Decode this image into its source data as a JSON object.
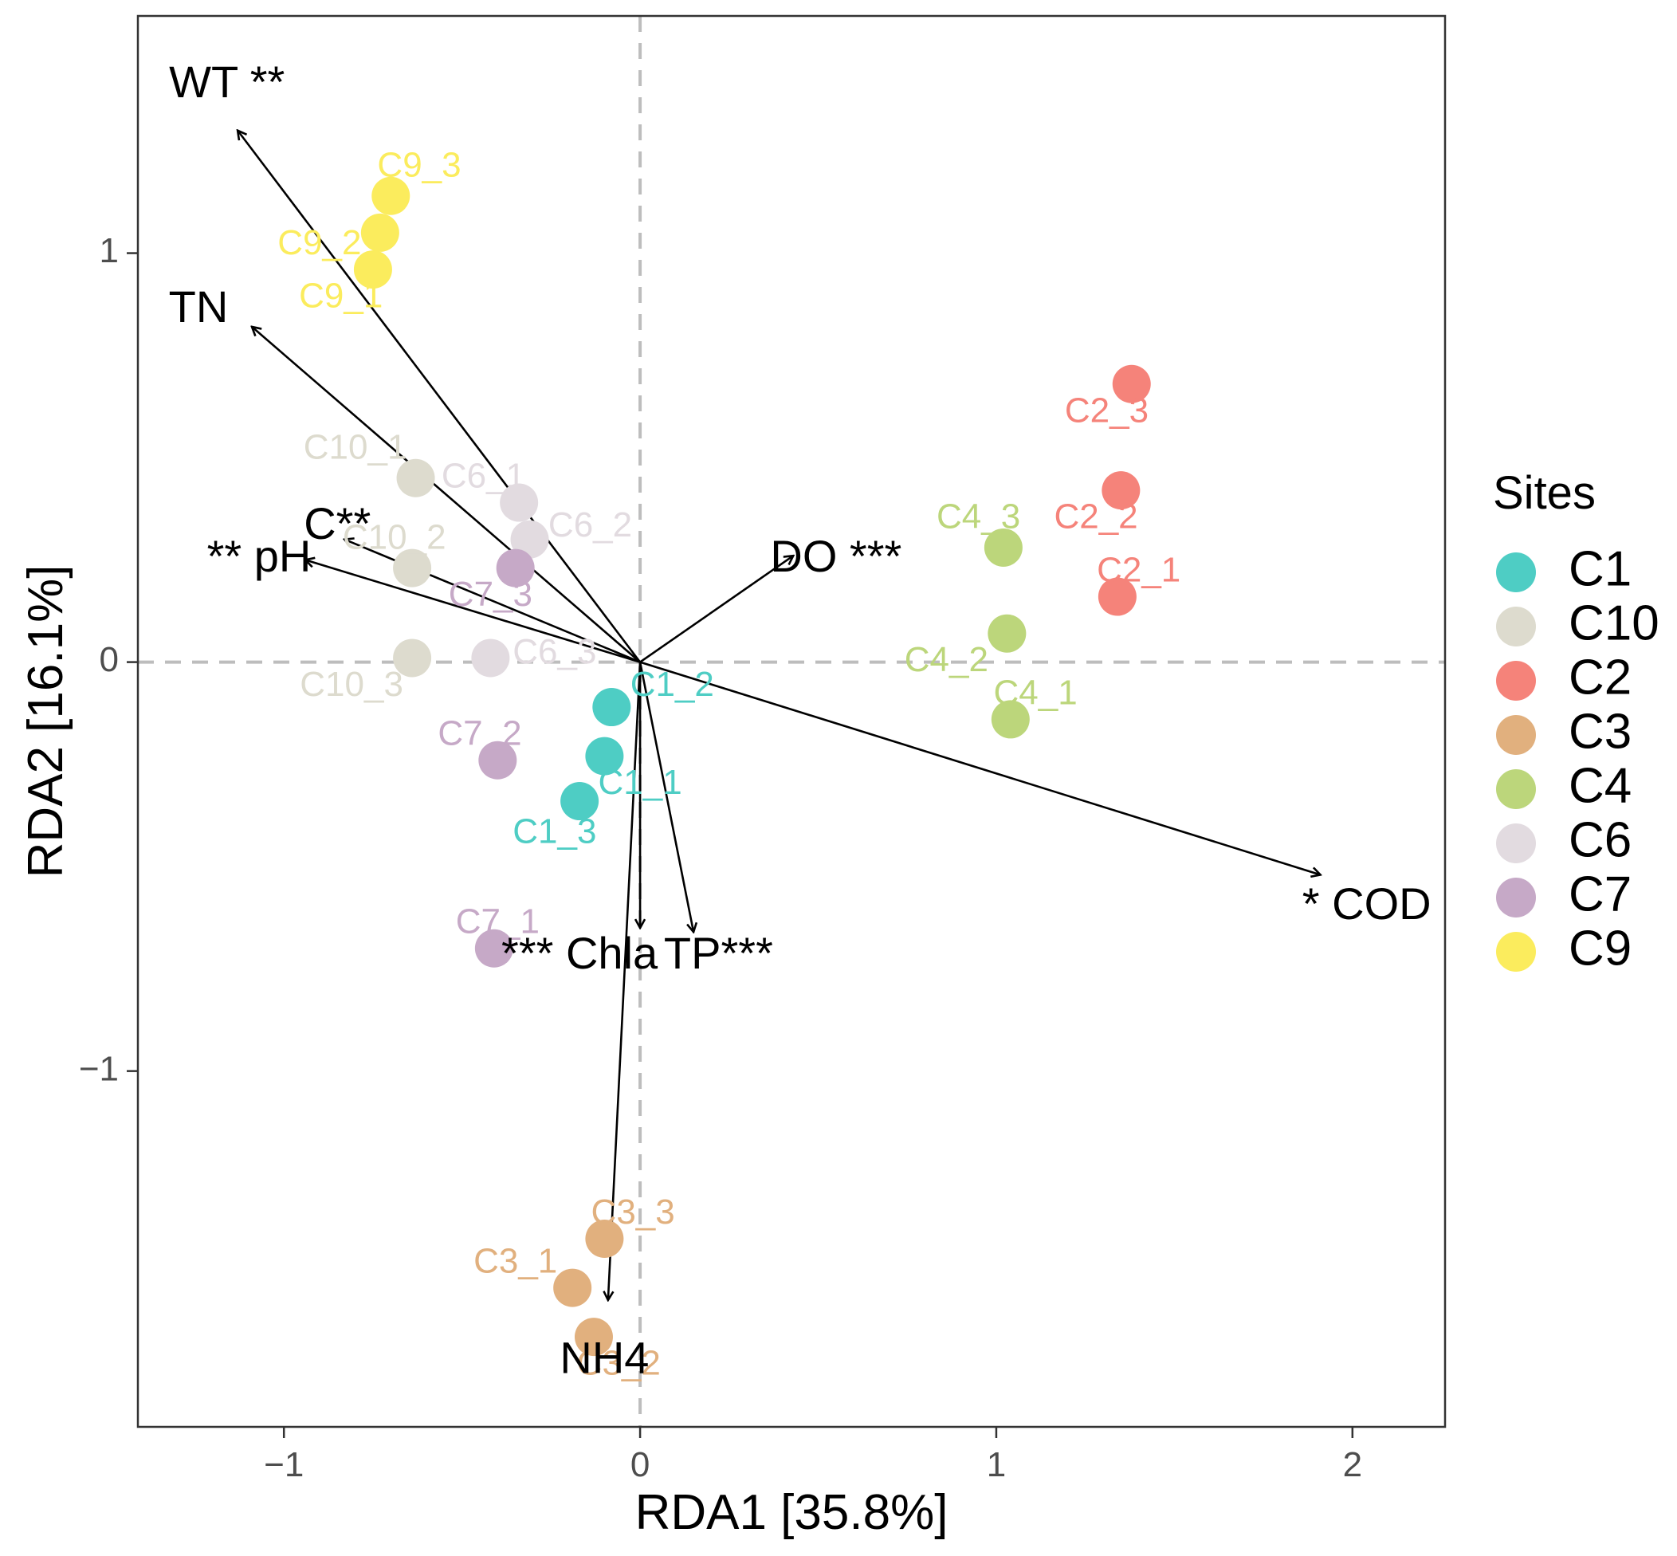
{
  "chart_data": {
    "type": "scatter",
    "subtype": "RDA biplot",
    "xlabel": "RDA1 [35.8%]",
    "ylabel": "RDA2 [16.1%]",
    "xlim": [
      -1.41,
      2.26
    ],
    "ylim": [
      -1.87,
      1.58
    ],
    "xticks": [
      -1,
      0,
      1,
      2
    ],
    "yticks": [
      -1,
      0,
      1
    ],
    "x_tick_labels": [
      "−1",
      "0",
      "1",
      "2"
    ],
    "y_tick_labels": [
      "−1",
      "0",
      "1"
    ],
    "reference_lines": [
      {
        "axis": "x",
        "value": 0,
        "style": "dashed"
      },
      {
        "axis": "y",
        "value": 0,
        "style": "dashed"
      }
    ],
    "grid": false,
    "legend": {
      "title": "Sites",
      "placement": "right",
      "entries": [
        {
          "label": "C1",
          "color": "#4ECDC4"
        },
        {
          "label": "C10",
          "color": "#DDDBCE"
        },
        {
          "label": "C2",
          "color": "#F5837A"
        },
        {
          "label": "C3",
          "color": "#E1B07E"
        },
        {
          "label": "C4",
          "color": "#BCD67B"
        },
        {
          "label": "C6",
          "color": "#E2DBE0"
        },
        {
          "label": "C7",
          "color": "#C6A9C7"
        },
        {
          "label": "C9",
          "color": "#FBEC5D"
        }
      ]
    },
    "points": [
      {
        "label": "C1_1",
        "group": "C1",
        "x": -0.1,
        "y": -0.23,
        "lx": 0.0,
        "ly": -0.3
      },
      {
        "label": "C1_2",
        "group": "C1",
        "x": -0.08,
        "y": -0.11,
        "lx": 0.09,
        "ly": -0.06
      },
      {
        "label": "C1_3",
        "group": "C1",
        "x": -0.17,
        "y": -0.34,
        "lx": -0.24,
        "ly": -0.42
      },
      {
        "label": "C10_1",
        "group": "C10",
        "x": -0.63,
        "y": 0.45,
        "lx": -0.8,
        "ly": 0.52
      },
      {
        "label": "C10_2",
        "group": "C10",
        "x": -0.64,
        "y": 0.23,
        "lx": -0.69,
        "ly": 0.3
      },
      {
        "label": "C10_3",
        "group": "C10",
        "x": -0.64,
        "y": 0.01,
        "lx": -0.81,
        "ly": -0.06
      },
      {
        "label": "C2_1",
        "group": "C2",
        "x": 1.34,
        "y": 0.16,
        "lx": 1.4,
        "ly": 0.22
      },
      {
        "label": "C2_2",
        "group": "C2",
        "x": 1.35,
        "y": 0.42,
        "lx": 1.28,
        "ly": 0.35
      },
      {
        "label": "C2_3",
        "group": "C2",
        "x": 1.38,
        "y": 0.68,
        "lx": 1.31,
        "ly": 0.61
      },
      {
        "label": "C3_1",
        "group": "C3",
        "x": -0.19,
        "y": -1.53,
        "lx": -0.35,
        "ly": -1.47
      },
      {
        "label": "C3_2",
        "group": "C3",
        "x": -0.13,
        "y": -1.65,
        "lx": -0.06,
        "ly": -1.72
      },
      {
        "label": "C3_3",
        "group": "C3",
        "x": -0.1,
        "y": -1.41,
        "lx": -0.02,
        "ly": -1.35
      },
      {
        "label": "C4_1",
        "group": "C4",
        "x": 1.04,
        "y": -0.14,
        "lx": 1.11,
        "ly": -0.08
      },
      {
        "label": "C4_2",
        "group": "C4",
        "x": 1.03,
        "y": 0.07,
        "lx": 0.86,
        "ly": 0.0
      },
      {
        "label": "C4_3",
        "group": "C4",
        "x": 1.02,
        "y": 0.28,
        "lx": 0.95,
        "ly": 0.35
      },
      {
        "label": "C6_1",
        "group": "C6",
        "x": -0.34,
        "y": 0.39,
        "lx": -0.44,
        "ly": 0.45
      },
      {
        "label": "C6_2",
        "group": "C6",
        "x": -0.31,
        "y": 0.3,
        "lx": -0.14,
        "ly": 0.33
      },
      {
        "label": "C6_3",
        "group": "C6",
        "x": -0.42,
        "y": 0.01,
        "lx": -0.24,
        "ly": 0.02
      },
      {
        "label": "C7_1",
        "group": "C7",
        "x": -0.41,
        "y": -0.7,
        "lx": -0.4,
        "ly": -0.64
      },
      {
        "label": "C7_2",
        "group": "C7",
        "x": -0.4,
        "y": -0.24,
        "lx": -0.45,
        "ly": -0.18
      },
      {
        "label": "C7_3",
        "group": "C7",
        "x": -0.35,
        "y": 0.23,
        "lx": -0.42,
        "ly": 0.16
      },
      {
        "label": "C9_1",
        "group": "C9",
        "x": -0.75,
        "y": 0.96,
        "lx": -0.84,
        "ly": 0.89
      },
      {
        "label": "C9_2",
        "group": "C9",
        "x": -0.73,
        "y": 1.05,
        "lx": -0.9,
        "ly": 1.02
      },
      {
        "label": "C9_3",
        "group": "C9",
        "x": -0.7,
        "y": 1.14,
        "lx": -0.62,
        "ly": 1.21
      }
    ],
    "vectors": [
      {
        "name": "WT",
        "signif": "**",
        "label": "WT **",
        "x": -1.13,
        "y": 1.3,
        "lx": -1.16,
        "ly": 1.41,
        "anchor": "middle"
      },
      {
        "name": "TN",
        "signif": "",
        "label": "TN",
        "x": -1.09,
        "y": 0.82,
        "lx": -1.24,
        "ly": 0.86,
        "anchor": "middle"
      },
      {
        "name": "C",
        "signif": "**",
        "label": "C**",
        "x": -0.83,
        "y": 0.3,
        "lx": -0.85,
        "ly": 0.33,
        "anchor": "middle"
      },
      {
        "name": "pH",
        "signif": "**",
        "label": "** pH",
        "x": -0.94,
        "y": 0.25,
        "lx": -1.07,
        "ly": 0.25,
        "anchor": "middle"
      },
      {
        "name": "DO",
        "signif": "***",
        "label": "DO ***",
        "x": 0.43,
        "y": 0.26,
        "lx": 0.55,
        "ly": 0.25,
        "anchor": "middle"
      },
      {
        "name": "COD",
        "signif": "*",
        "label": "* COD",
        "x": 1.91,
        "y": -0.52,
        "lx": 2.04,
        "ly": -0.6,
        "anchor": "middle"
      },
      {
        "name": "Chla",
        "signif": "***",
        "label": "*** Chla",
        "x": 0.0,
        "y": -0.65,
        "lx": -0.17,
        "ly": -0.72,
        "anchor": "middle"
      },
      {
        "name": "TP",
        "signif": "***",
        "label": "TP***",
        "x": 0.15,
        "y": -0.66,
        "lx": 0.22,
        "ly": -0.72,
        "anchor": "middle"
      },
      {
        "name": "NH4",
        "signif": "",
        "label": "NH4",
        "x": -0.09,
        "y": -1.56,
        "lx": -0.1,
        "ly": -1.71,
        "anchor": "middle"
      }
    ]
  }
}
